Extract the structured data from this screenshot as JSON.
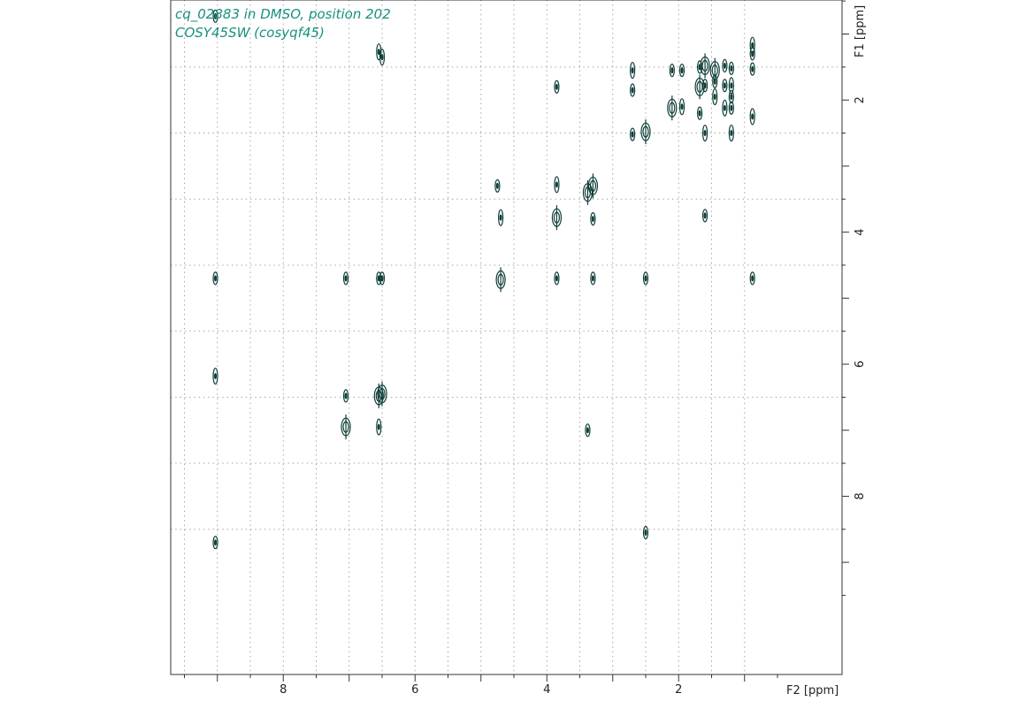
{
  "chart_data": {
    "type": "contour",
    "title_lines": [
      "cq_02883 in DMSO, position 202",
      "COSY45SW (cosyqf45)"
    ],
    "xlabel": "F2 [ppm]",
    "ylabel": "F1 [ppm]",
    "xlim": [
      9.5,
      0.5
    ],
    "ylim": [
      0.5,
      9.5
    ],
    "x_tick_labels": [
      8,
      6,
      4,
      2
    ],
    "y_tick_labels": [
      2,
      4,
      6,
      8
    ],
    "grid": true,
    "colors": {
      "contour": "#0f3f3a",
      "title": "#16907f",
      "frame": "#333333"
    },
    "peaks": [
      {
        "x": 0.88,
        "y": 1.17
      },
      {
        "x": 0.88,
        "y": 1.3
      },
      {
        "x": 0.88,
        "y": 1.53
      },
      {
        "x": 0.88,
        "y": 2.25
      },
      {
        "x": 0.88,
        "y": 4.7
      },
      {
        "x": 1.2,
        "y": 1.52
      },
      {
        "x": 1.2,
        "y": 1.78
      },
      {
        "x": 1.2,
        "y": 1.95
      },
      {
        "x": 1.2,
        "y": 2.12
      },
      {
        "x": 1.2,
        "y": 2.5
      },
      {
        "x": 1.3,
        "y": 1.48
      },
      {
        "x": 1.3,
        "y": 1.78
      },
      {
        "x": 1.3,
        "y": 2.12
      },
      {
        "x": 1.45,
        "y": 1.55
      },
      {
        "x": 1.45,
        "y": 1.72
      },
      {
        "x": 1.45,
        "y": 1.95
      },
      {
        "x": 1.6,
        "y": 1.48
      },
      {
        "x": 1.6,
        "y": 1.78
      },
      {
        "x": 1.6,
        "y": 2.5
      },
      {
        "x": 1.6,
        "y": 3.75
      },
      {
        "x": 1.68,
        "y": 1.5
      },
      {
        "x": 1.68,
        "y": 1.8
      },
      {
        "x": 1.68,
        "y": 2.2
      },
      {
        "x": 1.95,
        "y": 1.55
      },
      {
        "x": 1.95,
        "y": 2.1
      },
      {
        "x": 2.1,
        "y": 1.55
      },
      {
        "x": 2.1,
        "y": 2.12
      },
      {
        "x": 2.5,
        "y": 2.48
      },
      {
        "x": 2.5,
        "y": 4.7
      },
      {
        "x": 2.5,
        "y": 8.55
      },
      {
        "x": 2.7,
        "y": 1.55
      },
      {
        "x": 2.7,
        "y": 1.85
      },
      {
        "x": 2.7,
        "y": 2.52
      },
      {
        "x": 3.3,
        "y": 3.3
      },
      {
        "x": 3.3,
        "y": 3.8
      },
      {
        "x": 3.3,
        "y": 4.7
      },
      {
        "x": 3.38,
        "y": 3.4
      },
      {
        "x": 3.38,
        "y": 7.0
      },
      {
        "x": 3.85,
        "y": 1.8
      },
      {
        "x": 3.85,
        "y": 3.28
      },
      {
        "x": 3.85,
        "y": 3.78
      },
      {
        "x": 3.85,
        "y": 4.7
      },
      {
        "x": 4.7,
        "y": 3.78
      },
      {
        "x": 4.75,
        "y": 3.3
      },
      {
        "x": 4.7,
        "y": 4.72
      },
      {
        "x": 6.5,
        "y": 1.35
      },
      {
        "x": 6.5,
        "y": 4.7
      },
      {
        "x": 6.5,
        "y": 6.45
      },
      {
        "x": 6.55,
        "y": 1.27
      },
      {
        "x": 6.55,
        "y": 4.7
      },
      {
        "x": 6.55,
        "y": 6.48
      },
      {
        "x": 6.55,
        "y": 6.95
      },
      {
        "x": 7.05,
        "y": 4.7
      },
      {
        "x": 7.05,
        "y": 6.48
      },
      {
        "x": 7.05,
        "y": 6.95
      },
      {
        "x": 9.03,
        "y": 0.73
      },
      {
        "x": 9.03,
        "y": 4.7
      },
      {
        "x": 9.03,
        "y": 6.18
      },
      {
        "x": 9.03,
        "y": 8.7
      }
    ]
  }
}
